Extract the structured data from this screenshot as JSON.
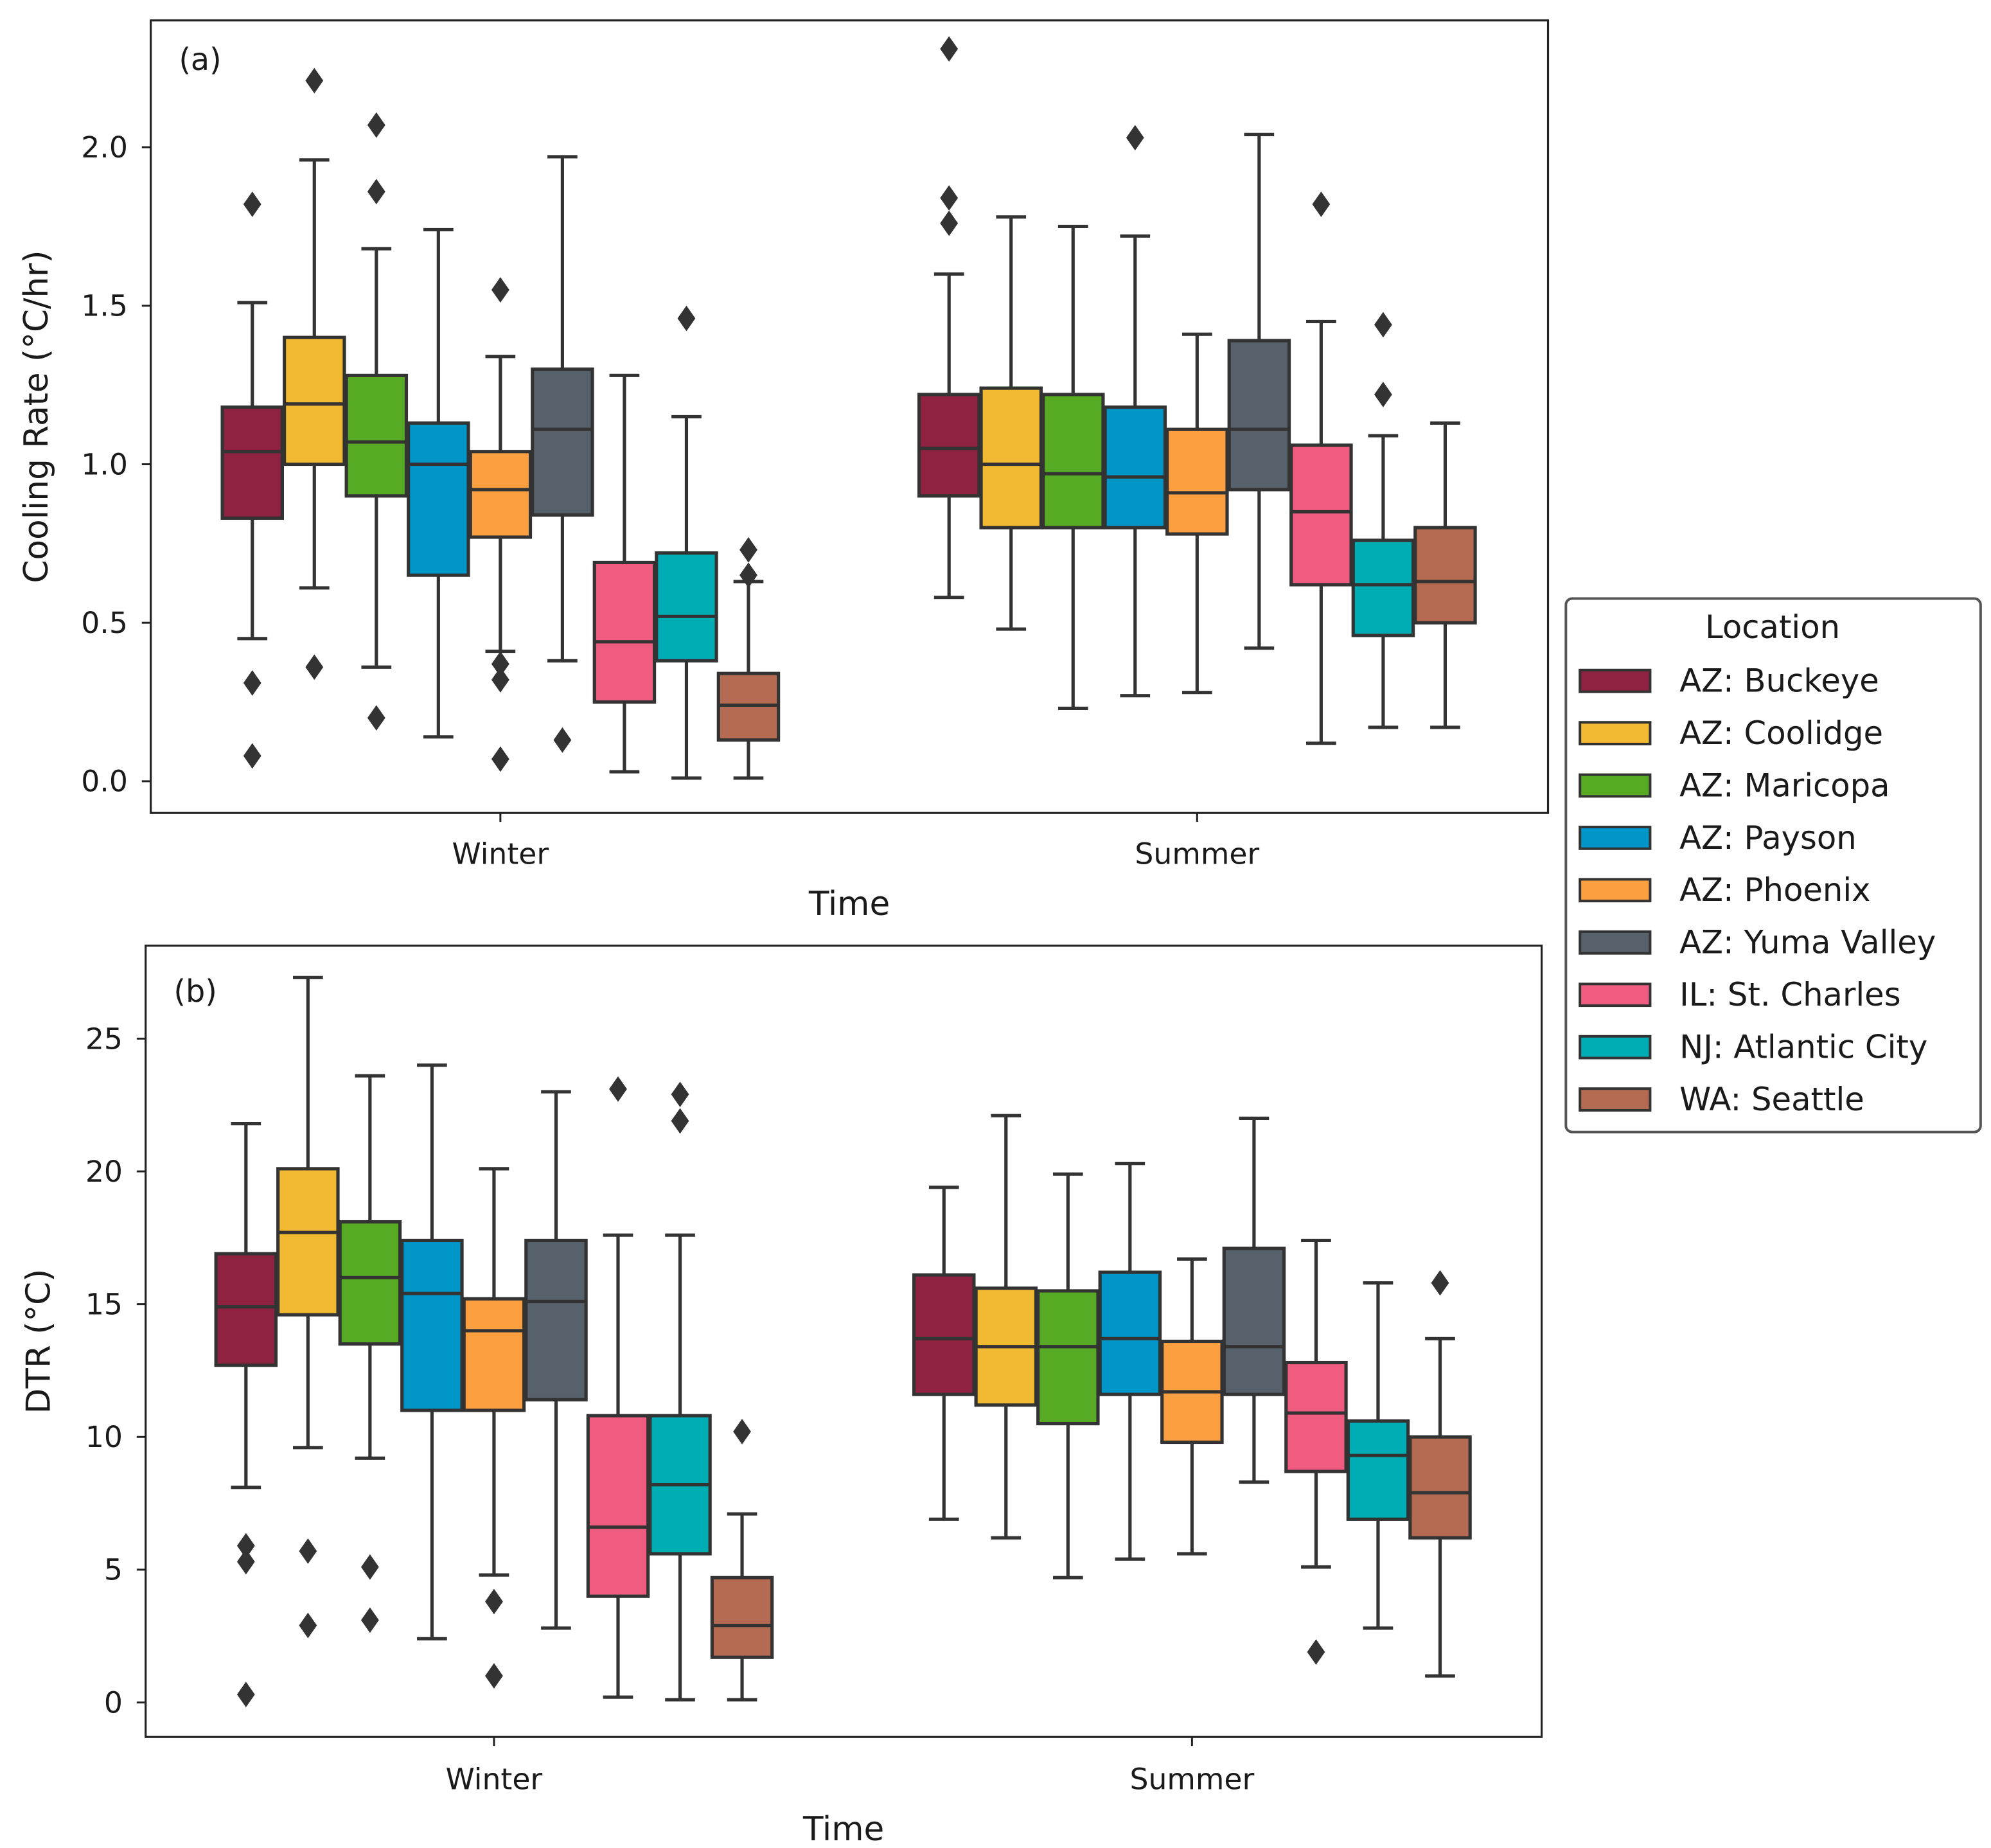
{
  "chart_data": {
    "type": "box",
    "legend": {
      "title": "Location",
      "placement": "right",
      "entries": [
        {
          "label": "AZ: Buckeye",
          "color": "#8e2240"
        },
        {
          "label": "AZ: Coolidge",
          "color": "#f2ba32"
        },
        {
          "label": "AZ: Maricopa",
          "color": "#56aa24"
        },
        {
          "label": "AZ: Payson",
          "color": "#0096c8"
        },
        {
          "label": "AZ: Phoenix",
          "color": "#fc9f40"
        },
        {
          "label": "AZ: Yuma Valley",
          "color": "#56616b"
        },
        {
          "label": "IL: St. Charles",
          "color": "#f05c80"
        },
        {
          "label": "NJ: Atlantic City",
          "color": "#00adb5"
        },
        {
          "label": "WA: Seattle",
          "color": "#b46b51"
        }
      ]
    },
    "panels": [
      {
        "panel_label": "(a)",
        "xlabel": "Time",
        "ylabel": "Cooling Rate (°C/hr)",
        "ylim": [
          -0.1,
          2.4
        ],
        "yticks": [
          0.0,
          0.5,
          1.0,
          1.5,
          2.0
        ],
        "ytick_labels": [
          "0.0",
          "0.5",
          "1.0",
          "1.5",
          "2.0"
        ],
        "categories": [
          "Winter",
          "Summer"
        ],
        "boxes": [
          [
            {
              "whislo": 0.45,
              "q1": 0.83,
              "med": 1.04,
              "q3": 1.18,
              "whishi": 1.51,
              "fliers": [
                1.82,
                0.31,
                0.08
              ]
            },
            {
              "whislo": 0.61,
              "q1": 1.0,
              "med": 1.19,
              "q3": 1.4,
              "whishi": 1.96,
              "fliers": [
                2.21,
                0.36
              ]
            },
            {
              "whislo": 0.36,
              "q1": 0.9,
              "med": 1.07,
              "q3": 1.28,
              "whishi": 1.68,
              "fliers": [
                2.07,
                1.86,
                0.2
              ]
            },
            {
              "whislo": 0.14,
              "q1": 0.65,
              "med": 1.0,
              "q3": 1.13,
              "whishi": 1.74,
              "fliers": []
            },
            {
              "whislo": 0.41,
              "q1": 0.77,
              "med": 0.92,
              "q3": 1.04,
              "whishi": 1.34,
              "fliers": [
                1.55,
                0.37,
                0.32,
                0.07
              ]
            },
            {
              "whislo": 0.38,
              "q1": 0.84,
              "med": 1.11,
              "q3": 1.3,
              "whishi": 1.97,
              "fliers": [
                0.13
              ]
            },
            {
              "whislo": 0.03,
              "q1": 0.25,
              "med": 0.44,
              "q3": 0.69,
              "whishi": 1.28,
              "fliers": []
            },
            {
              "whislo": 0.01,
              "q1": 0.38,
              "med": 0.52,
              "q3": 0.72,
              "whishi": 1.15,
              "fliers": [
                1.46
              ]
            },
            {
              "whislo": 0.01,
              "q1": 0.13,
              "med": 0.24,
              "q3": 0.34,
              "whishi": 0.63,
              "fliers": [
                0.73,
                0.65
              ]
            }
          ],
          [
            {
              "whislo": 0.58,
              "q1": 0.9,
              "med": 1.05,
              "q3": 1.22,
              "whishi": 1.6,
              "fliers": [
                2.31,
                1.84,
                1.76
              ]
            },
            {
              "whislo": 0.48,
              "q1": 0.8,
              "med": 1.0,
              "q3": 1.24,
              "whishi": 1.78,
              "fliers": []
            },
            {
              "whislo": 0.23,
              "q1": 0.8,
              "med": 0.97,
              "q3": 1.22,
              "whishi": 1.75,
              "fliers": []
            },
            {
              "whislo": 0.27,
              "q1": 0.8,
              "med": 0.96,
              "q3": 1.18,
              "whishi": 1.72,
              "fliers": [
                2.03
              ]
            },
            {
              "whislo": 0.28,
              "q1": 0.78,
              "med": 0.91,
              "q3": 1.11,
              "whishi": 1.41,
              "fliers": []
            },
            {
              "whislo": 0.42,
              "q1": 0.92,
              "med": 1.11,
              "q3": 1.39,
              "whishi": 2.04,
              "fliers": []
            },
            {
              "whislo": 0.12,
              "q1": 0.62,
              "med": 0.85,
              "q3": 1.06,
              "whishi": 1.45,
              "fliers": [
                1.82
              ]
            },
            {
              "whislo": 0.17,
              "q1": 0.46,
              "med": 0.62,
              "q3": 0.76,
              "whishi": 1.09,
              "fliers": [
                1.44,
                1.22
              ]
            },
            {
              "whislo": 0.17,
              "q1": 0.5,
              "med": 0.63,
              "q3": 0.8,
              "whishi": 1.13,
              "fliers": []
            }
          ]
        ]
      },
      {
        "panel_label": "(b)",
        "xlabel": "Time",
        "ylabel": "DTR (°C)",
        "ylim": [
          -1.3,
          28.5
        ],
        "yticks": [
          0,
          5,
          10,
          15,
          20,
          25
        ],
        "ytick_labels": [
          "0",
          "5",
          "10",
          "15",
          "20",
          "25"
        ],
        "categories": [
          "Winter",
          "Summer"
        ],
        "boxes": [
          [
            {
              "whislo": 8.1,
              "q1": 12.7,
              "med": 14.9,
              "q3": 16.9,
              "whishi": 21.8,
              "fliers": [
                5.9,
                5.3,
                0.3
              ]
            },
            {
              "whislo": 9.6,
              "q1": 14.6,
              "med": 17.7,
              "q3": 20.1,
              "whishi": 27.3,
              "fliers": [
                5.7,
                2.9
              ]
            },
            {
              "whislo": 9.2,
              "q1": 13.5,
              "med": 16.0,
              "q3": 18.1,
              "whishi": 23.6,
              "fliers": [
                5.1,
                3.1
              ]
            },
            {
              "whislo": 2.4,
              "q1": 11.0,
              "med": 15.4,
              "q3": 17.4,
              "whishi": 24.0,
              "fliers": []
            },
            {
              "whislo": 4.8,
              "q1": 11.0,
              "med": 14.0,
              "q3": 15.2,
              "whishi": 20.1,
              "fliers": [
                3.8,
                1.0
              ]
            },
            {
              "whislo": 2.8,
              "q1": 11.4,
              "med": 15.1,
              "q3": 17.4,
              "whishi": 23.0,
              "fliers": []
            },
            {
              "whislo": 0.2,
              "q1": 4.0,
              "med": 6.6,
              "q3": 10.8,
              "whishi": 17.6,
              "fliers": [
                23.1
              ]
            },
            {
              "whislo": 0.1,
              "q1": 5.6,
              "med": 8.2,
              "q3": 10.8,
              "whishi": 17.6,
              "fliers": [
                22.9,
                21.9
              ]
            },
            {
              "whislo": 0.1,
              "q1": 1.7,
              "med": 2.9,
              "q3": 4.7,
              "whishi": 7.1,
              "fliers": [
                10.2
              ]
            }
          ],
          [
            {
              "whislo": 6.9,
              "q1": 11.6,
              "med": 13.7,
              "q3": 16.1,
              "whishi": 19.4,
              "fliers": []
            },
            {
              "whislo": 6.2,
              "q1": 11.2,
              "med": 13.4,
              "q3": 15.6,
              "whishi": 22.1,
              "fliers": []
            },
            {
              "whislo": 4.7,
              "q1": 10.5,
              "med": 13.4,
              "q3": 15.5,
              "whishi": 19.9,
              "fliers": []
            },
            {
              "whislo": 5.4,
              "q1": 11.6,
              "med": 13.7,
              "q3": 16.2,
              "whishi": 20.3,
              "fliers": []
            },
            {
              "whislo": 5.6,
              "q1": 9.8,
              "med": 11.7,
              "q3": 13.6,
              "whishi": 16.7,
              "fliers": []
            },
            {
              "whislo": 8.3,
              "q1": 11.6,
              "med": 13.4,
              "q3": 17.1,
              "whishi": 22.0,
              "fliers": []
            },
            {
              "whislo": 5.1,
              "q1": 8.7,
              "med": 10.9,
              "q3": 12.8,
              "whishi": 17.4,
              "fliers": [
                1.9
              ]
            },
            {
              "whislo": 2.8,
              "q1": 6.9,
              "med": 9.3,
              "q3": 10.6,
              "whishi": 15.8,
              "fliers": []
            },
            {
              "whislo": 1.0,
              "q1": 6.2,
              "med": 7.9,
              "q3": 10.0,
              "whishi": 13.7,
              "fliers": [
                15.8
              ]
            }
          ]
        ]
      }
    ]
  }
}
